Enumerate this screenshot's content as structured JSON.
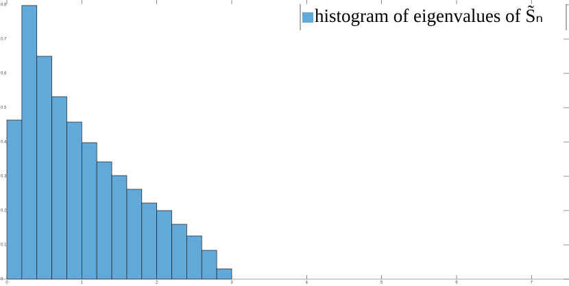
{
  "chart_data": {
    "type": "histogram",
    "bins": [
      0,
      0.2,
      0.4,
      0.6,
      0.8,
      1.0,
      1.2,
      1.4,
      1.6,
      1.8,
      2.0,
      2.2,
      2.4,
      2.6,
      2.8,
      3.0
    ],
    "series": [
      {
        "name": "histogram of eigenvalues of S̃ₙ",
        "color": "#62a9d9",
        "values": [
          0.464,
          0.798,
          0.65,
          0.532,
          0.458,
          0.398,
          0.342,
          0.302,
          0.262,
          0.222,
          0.2,
          0.16,
          0.126,
          0.084,
          0.03
        ]
      }
    ],
    "xlim": [
      0,
      7.5
    ],
    "xticks": [
      0,
      1,
      2,
      3,
      4,
      5,
      6,
      7
    ],
    "ylim": [
      0,
      0.8
    ],
    "yticks": [
      0,
      0.1,
      0.2,
      0.3,
      0.4,
      0.5,
      0.6,
      0.7,
      0.8
    ],
    "legend": "top-right"
  }
}
